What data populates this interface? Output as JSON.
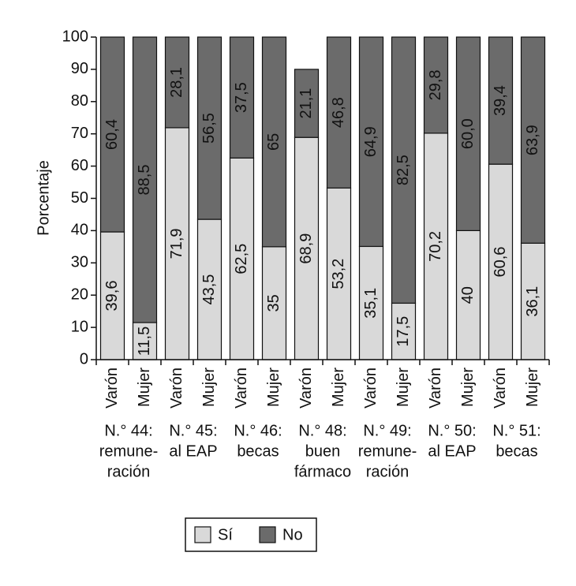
{
  "chart_data": {
    "type": "stacked_bar",
    "y_label": "Porcentaje",
    "categories": [
      "Varón",
      "Mujer",
      "Varón",
      "Mujer",
      "Varón",
      "Mujer",
      "Varón",
      "Mujer",
      "Varón",
      "Mujer",
      "Varón",
      "Mujer",
      "Varón",
      "Mujer"
    ],
    "groups": [
      [
        "N.° 44:",
        "remune-",
        "ración"
      ],
      [
        "N.° 45:",
        "al EAP"
      ],
      [
        "N.° 46:",
        "becas"
      ],
      [
        "N.° 48:",
        "buen",
        "fármaco"
      ],
      [
        "N.° 49:",
        "remune-",
        "ración"
      ],
      [
        "N.° 50:",
        "al EAP"
      ],
      [
        "N.° 51:",
        "becas"
      ]
    ],
    "series": [
      {
        "name": "Sí",
        "color": "#d9d9d9",
        "values": [
          39.6,
          11.5,
          71.9,
          43.5,
          62.5,
          35,
          68.9,
          53.2,
          35.1,
          17.5,
          70.2,
          40,
          60.6,
          36.1
        ],
        "value_labels": [
          "39,6",
          "11,5",
          "71,9",
          "43,5",
          "62,5",
          "35",
          "68,9",
          "53,2",
          "35,1",
          "17,5",
          "70,2",
          "40",
          "60,6",
          "36,1"
        ]
      },
      {
        "name": "No",
        "color": "#6b6b6b",
        "values": [
          60.4,
          88.5,
          28.1,
          56.5,
          37.5,
          65,
          21.1,
          46.8,
          64.9,
          82.5,
          29.8,
          60.0,
          39.4,
          63.9
        ],
        "value_labels": [
          "60,4",
          "88,5",
          "28,1",
          "56,5",
          "37,5",
          "65",
          "21,1",
          "46,8",
          "64,9",
          "82,5",
          "29,8",
          "60,0",
          "39,4",
          "63,9"
        ]
      }
    ],
    "ylim": [
      0,
      100
    ],
    "yticks": [
      0,
      10,
      20,
      30,
      40,
      50,
      60,
      70,
      80,
      90,
      100
    ],
    "legend": "bottom"
  }
}
